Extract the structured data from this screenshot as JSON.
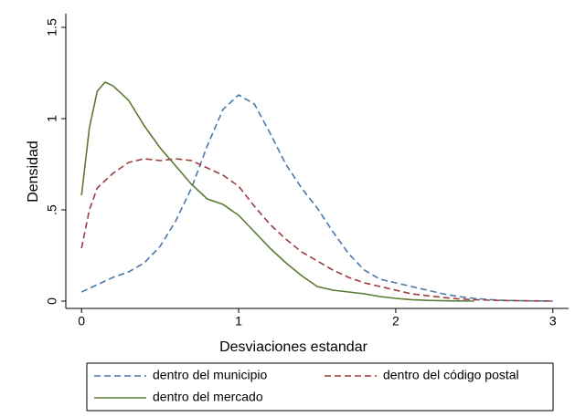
{
  "chart_data": {
    "type": "line",
    "x_label": "Desviaciones estandar",
    "y_label": "Densidad",
    "x": [
      0,
      0.05,
      0.1,
      0.15,
      0.2,
      0.3,
      0.4,
      0.5,
      0.6,
      0.7,
      0.8,
      0.9,
      1.0,
      1.1,
      1.2,
      1.3,
      1.4,
      1.5,
      1.6,
      1.7,
      1.8,
      1.9,
      2.0,
      2.1,
      2.2,
      2.3,
      2.4,
      2.5,
      2.6,
      2.7,
      2.8,
      2.9,
      3.0
    ],
    "series": [
      {
        "name": "dentro del municipio",
        "color": "#4a78ad",
        "dash": "dashed",
        "values": [
          0.05,
          0.07,
          0.09,
          0.11,
          0.13,
          0.16,
          0.21,
          0.3,
          0.44,
          0.62,
          0.85,
          1.05,
          1.13,
          1.08,
          0.92,
          0.75,
          0.62,
          0.51,
          0.38,
          0.26,
          0.17,
          0.12,
          0.1,
          0.08,
          0.06,
          0.04,
          0.025,
          0.015,
          0.008,
          0.004,
          0.002,
          0.001,
          0
        ]
      },
      {
        "name": "dentro del código postal",
        "color": "#9c3b3f",
        "dash": "dashed",
        "values": [
          0.29,
          0.5,
          0.62,
          0.66,
          0.7,
          0.76,
          0.78,
          0.77,
          0.78,
          0.77,
          0.73,
          0.69,
          0.63,
          0.52,
          0.42,
          0.34,
          0.27,
          0.22,
          0.17,
          0.13,
          0.1,
          0.08,
          0.06,
          0.04,
          0.03,
          0.02,
          0.012,
          0.008,
          0.005,
          0.003,
          0.002,
          0.001,
          0
        ]
      },
      {
        "name": "dentro del mercado",
        "color": "#5a7a34",
        "dash": "solid",
        "values": [
          0.58,
          0.95,
          1.15,
          1.2,
          1.18,
          1.1,
          0.96,
          0.84,
          0.74,
          0.64,
          0.56,
          0.53,
          0.47,
          0.38,
          0.29,
          0.21,
          0.14,
          0.08,
          0.06,
          0.05,
          0.04,
          0.025,
          0.015,
          0.008,
          0.004,
          0.002,
          0.001,
          0,
          null,
          null,
          null,
          null,
          null
        ]
      }
    ],
    "xlim": [
      -0.1,
      3.1
    ],
    "xticks": [
      0,
      1,
      2,
      3
    ],
    "ylim": [
      -0.04,
      1.575
    ],
    "yticks": [
      0,
      {
        "value": 0.5,
        "label": ".5"
      },
      1,
      1.5
    ],
    "legend": "bottom"
  }
}
